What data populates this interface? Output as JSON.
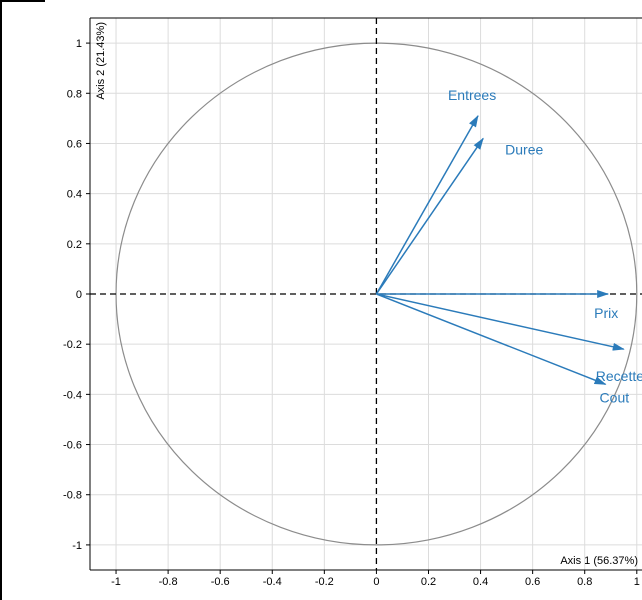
{
  "chart_data": {
    "type": "scatter",
    "title": "",
    "xlabel": "Axis 1 (56.37%)",
    "ylabel": "Axis 2 (21.43%)",
    "xlim": [
      -1.1,
      1.02
    ],
    "ylim": [
      -1.1,
      1.1
    ],
    "x_ticks": [
      -1,
      -0.8,
      -0.6,
      -0.4,
      -0.2,
      0,
      0.2,
      0.4,
      0.6,
      0.8,
      1
    ],
    "y_ticks": [
      -1,
      -0.8,
      -0.6,
      -0.4,
      -0.2,
      0,
      0.2,
      0.4,
      0.6,
      0.8,
      1
    ],
    "grid": true,
    "correlation_circle": true,
    "arrow_color": "#2b7bba",
    "circle_color": "#8c8c8c",
    "grid_color": "#dcdcdc",
    "points": [
      {
        "label": "Entrees",
        "x": 0.39,
        "y": 0.71
      },
      {
        "label": "Duree",
        "x": 0.41,
        "y": 0.62
      },
      {
        "label": "Prix",
        "x": 0.89,
        "y": 0.0
      },
      {
        "label": "Recette",
        "x": 0.95,
        "y": -0.22
      },
      {
        "label": "Cout",
        "x": 0.88,
        "y": -0.36
      }
    ]
  }
}
